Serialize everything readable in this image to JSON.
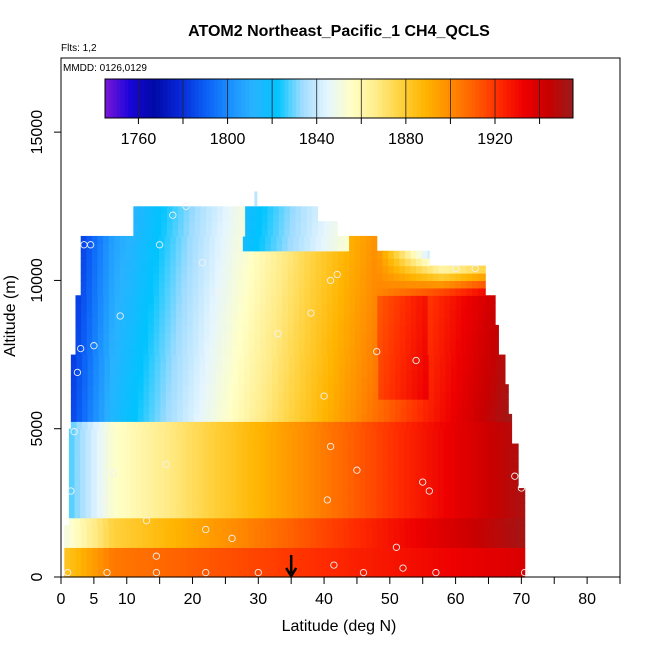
{
  "chart_data": {
    "type": "heatmap",
    "title": "ATOM2 Northeast_Pacific_1 CH4_QCLS",
    "notes": {
      "flights": "Flts: 1,2",
      "dates": "MMDD: 0126,0129"
    },
    "xlabel": "Latitude (deg N)",
    "ylabel": "Altitude (m)",
    "xlim": [
      0,
      85
    ],
    "ylim": [
      0,
      17500
    ],
    "x_ticks": [
      0,
      5,
      10,
      20,
      30,
      40,
      50,
      60,
      70,
      80
    ],
    "y_ticks": [
      0,
      5000,
      10000,
      15000
    ],
    "colorbar": {
      "range": [
        1745,
        1955
      ],
      "ticks": [
        1760,
        1800,
        1840,
        1880,
        1920
      ],
      "colors": [
        "#7b16d6",
        "#1a05d9",
        "#000aa6",
        "#0826d6",
        "#0a5bf4",
        "#1a8cff",
        "#2ab2ff",
        "#00c4ff",
        "#9fdcff",
        "#e4f5ff",
        "#ffffc6",
        "#ffec8a",
        "#ffd13c",
        "#ffb400",
        "#ff8c00",
        "#ff5e00",
        "#ff2b00",
        "#ee0000",
        "#c80000",
        "#9a1b1b"
      ]
    },
    "arrow_marker_latitude": 35,
    "flight_profile_points": [
      [
        1,
        150
      ],
      [
        1.5,
        2900
      ],
      [
        2,
        4900
      ],
      [
        2.5,
        6900
      ],
      [
        3,
        7700
      ],
      [
        3.5,
        11200
      ],
      [
        4.5,
        11200
      ],
      [
        5,
        7800
      ],
      [
        7,
        150
      ],
      [
        6.5,
        2500
      ],
      [
        8,
        3500
      ],
      [
        9,
        8800
      ],
      [
        13,
        1900
      ],
      [
        14.5,
        150
      ],
      [
        14.5,
        700
      ],
      [
        15,
        11200
      ],
      [
        16,
        3800
      ],
      [
        17,
        12200
      ],
      [
        19,
        12500
      ],
      [
        22,
        1600
      ],
      [
        21.5,
        10600
      ],
      [
        22,
        150
      ],
      [
        24,
        9600
      ],
      [
        26,
        1300
      ],
      [
        30,
        150
      ],
      [
        33,
        8200
      ],
      [
        38,
        8900
      ],
      [
        40,
        6100
      ],
      [
        41,
        10000
      ],
      [
        41,
        4400
      ],
      [
        40.5,
        2600
      ],
      [
        41.5,
        400
      ],
      [
        42,
        10200
      ],
      [
        45,
        3600
      ],
      [
        46,
        150
      ],
      [
        48,
        7600
      ],
      [
        51,
        1000
      ],
      [
        52,
        300
      ],
      [
        54,
        7300
      ],
      [
        55,
        3200
      ],
      [
        56,
        2900
      ],
      [
        57,
        150
      ],
      [
        60,
        10400
      ],
      [
        63,
        10400
      ],
      [
        69,
        3400
      ],
      [
        70,
        3000
      ],
      [
        70.5,
        150
      ]
    ]
  }
}
